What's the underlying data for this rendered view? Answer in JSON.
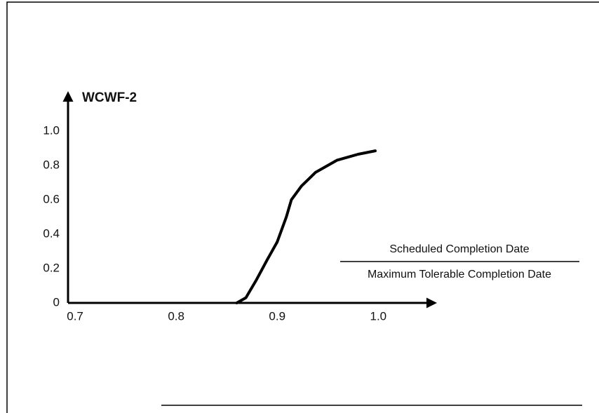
{
  "chart_data": {
    "type": "line",
    "ylabel": "WCWF-2",
    "xlabel": [
      "Scheduled Completion Date",
      "Maximum Tolerable Completion Date"
    ],
    "x": [
      0.86,
      0.869,
      0.879,
      0.89,
      0.9,
      0.909,
      0.914,
      0.924,
      0.938,
      0.959,
      0.98,
      0.997
    ],
    "series": [
      {
        "color": "#000000",
        "values": [
          0,
          0.03,
          0.13,
          0.25,
          0.355,
          0.5,
          0.6,
          0.68,
          0.76,
          0.83,
          0.865,
          0.885
        ]
      }
    ],
    "xlim": [
      0.693,
      1.056
    ],
    "ylim": [
      0,
      1.22
    ],
    "xticks": [
      0.7,
      0.8,
      0.9,
      {
        "value": 1,
        "label": "1.0"
      }
    ],
    "yticks": [
      0,
      0.2,
      0.4,
      0.6,
      0.8,
      {
        "value": 1,
        "label": "1.0"
      }
    ],
    "grid": false
  }
}
